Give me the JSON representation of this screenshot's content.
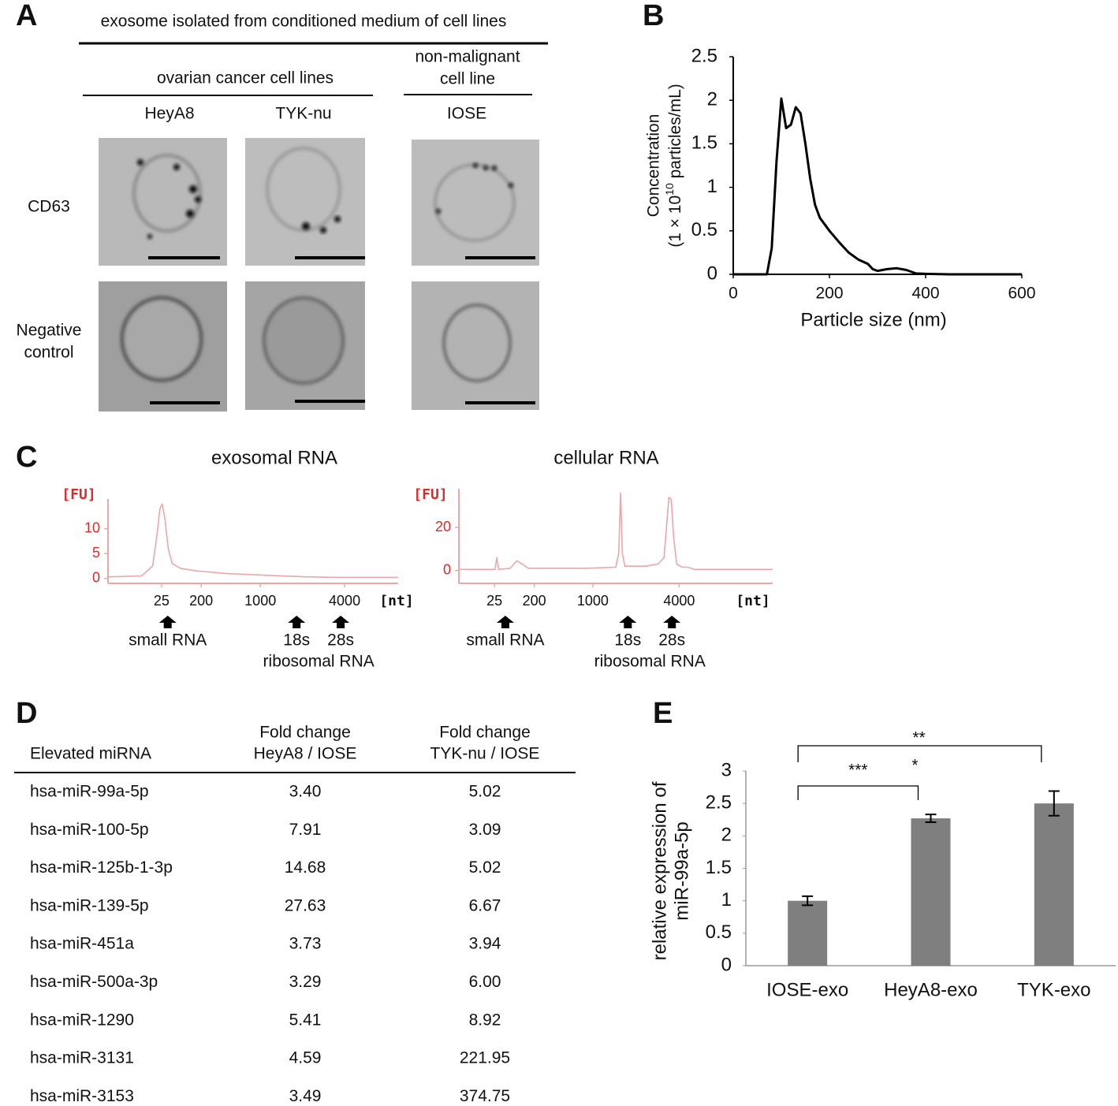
{
  "panel_labels": [
    "A",
    "B",
    "C",
    "D",
    "E"
  ],
  "panel_a": {
    "title": "exosome isolated from conditioned medium of cell lines",
    "groups": [
      {
        "lines": [
          "ovarian cancer cell lines"
        ]
      },
      {
        "lines": [
          "non-malignant",
          "cell line"
        ]
      }
    ],
    "columns": [
      "HeyA8",
      "TYK-nu",
      "IOSE"
    ],
    "rows": [
      [
        "CD63"
      ],
      [
        "Negative",
        "control"
      ]
    ]
  },
  "chart_data": [
    {
      "type": "line",
      "x_label": "Particle size (nm)",
      "y_label": [
        "Concentration",
        [
          "(1 × 10",
          "10",
          " particles/mL)"
        ]
      ],
      "color": "#000000",
      "x": [
        0,
        60,
        70,
        80,
        90,
        100,
        110,
        120,
        130,
        140,
        150,
        160,
        170,
        180,
        200,
        220,
        240,
        260,
        280,
        290,
        300,
        320,
        340,
        360,
        380,
        400,
        450,
        600
      ],
      "values": [
        0,
        0,
        0,
        0.3,
        1.3,
        2.02,
        1.68,
        1.72,
        1.92,
        1.85,
        1.5,
        1.1,
        0.8,
        0.65,
        0.5,
        0.37,
        0.25,
        0.17,
        0.12,
        0.06,
        0.04,
        0.06,
        0.07,
        0.05,
        0.01,
        0.005,
        0,
        0
      ],
      "xlim": [
        0,
        600
      ],
      "xticks": [
        0,
        200,
        400,
        600
      ],
      "ylim": [
        0,
        2.5
      ],
      "yticks": [
        0,
        0.5,
        1,
        1.5,
        2,
        2.5
      ]
    },
    {
      "type": "line",
      "title": "exosomal RNA",
      "y_unit": "[FU]",
      "x_unit": "[nt]",
      "color": "#e8a8a8",
      "axis_color": "#e8a8a8",
      "tick_color": "#e02828",
      "x": [
        19,
        25,
        27,
        27.8,
        28.3,
        28.7,
        29.2,
        29.8,
        30.5,
        32,
        35,
        40,
        50,
        55,
        60,
        71
      ],
      "values": [
        0.3,
        0.5,
        2.5,
        9,
        14,
        15,
        12,
        6,
        3,
        2,
        1.5,
        1,
        0.5,
        0.3,
        0.2,
        0.2
      ],
      "xlim": [
        19,
        71
      ],
      "xticks": [
        {
          "value": 28.6,
          "label": "25"
        },
        {
          "value": 35.7,
          "label": "200"
        },
        {
          "value": 46.3,
          "label": "1000"
        },
        {
          "value": 61.4,
          "label": "4000"
        }
      ],
      "ylim": [
        -1,
        16
      ],
      "yticks": [
        0,
        5,
        10
      ],
      "markers": [
        {
          "label": "small RNA",
          "x": 29.7
        },
        {
          "label": "18s",
          "x": 52.8
        },
        {
          "label": "28s",
          "x": 60.7
        }
      ],
      "marker_group_label": "ribosomal RNA"
    },
    {
      "type": "line",
      "title": "cellular RNA",
      "y_unit": "[FU]",
      "x_unit": "[nt]",
      "color": "#e8a8a8",
      "axis_color": "#e8a8a8",
      "tick_color": "#e02828",
      "x": [
        19,
        25,
        25.3,
        25.6,
        27.5,
        28.6,
        29.5,
        30.5,
        40,
        45,
        45.5,
        45.8,
        46.1,
        46.5,
        50,
        52,
        53,
        53.4,
        53.8,
        54.2,
        54.6,
        55.1,
        56,
        57,
        58,
        71
      ],
      "values": [
        0.5,
        0.5,
        6,
        0.5,
        1,
        4.5,
        3,
        1,
        1,
        1.5,
        8,
        36,
        8,
        2,
        2,
        3,
        6,
        20,
        34,
        33,
        15,
        3,
        1.5,
        1.5,
        0.5,
        0.5
      ],
      "xlim": [
        19,
        71
      ],
      "xticks": [
        {
          "value": 24.9,
          "label": "25"
        },
        {
          "value": 31.5,
          "label": "200"
        },
        {
          "value": 41.2,
          "label": "1000"
        },
        {
          "value": 55.5,
          "label": "4000"
        }
      ],
      "ylim": [
        -6,
        38
      ],
      "yticks": [
        0,
        20
      ],
      "markers": [
        {
          "label": "small RNA",
          "x": 26.7
        },
        {
          "label": "18s",
          "x": 47.0
        },
        {
          "label": "28s",
          "x": 54.3
        }
      ],
      "marker_group_label": "ribosomal RNA"
    },
    {
      "type": "bar",
      "y_label": [
        "relative expression of",
        "miR-99a-5p"
      ],
      "categories": [
        "IOSE-exo",
        "HeyA8-exo",
        "TYK-exo"
      ],
      "values": [
        1.0,
        2.27,
        2.5
      ],
      "errors": [
        0.07,
        0.06,
        0.19
      ],
      "color": "#7f7f7f",
      "ylim": [
        0,
        3
      ],
      "yticks": [
        0,
        0.5,
        1,
        1.5,
        2,
        2.5,
        3
      ],
      "significance": [
        {
          "label": "***",
          "from": 0,
          "to": 1
        },
        {
          "label": "**",
          "from": 0,
          "to": 2
        },
        {
          "label": "*"
        }
      ]
    }
  ],
  "table": {
    "header": [
      [
        "Elevated miRNA"
      ],
      [
        "Fold change",
        "HeyA8 / IOSE"
      ],
      [
        "Fold change",
        "TYK-nu / IOSE"
      ]
    ],
    "rows": [
      [
        "hsa-miR-99a-5p",
        "3.40",
        "5.02"
      ],
      [
        "hsa-miR-100-5p",
        "7.91",
        "3.09"
      ],
      [
        "hsa-miR-125b-1-3p",
        "14.68",
        "5.02"
      ],
      [
        "hsa-miR-139-5p",
        "27.63",
        "6.67"
      ],
      [
        "hsa-miR-451a",
        "3.73",
        "3.94"
      ],
      [
        "hsa-miR-500a-3p",
        "3.29",
        "6.00"
      ],
      [
        "hsa-miR-1290",
        "5.41",
        "8.92"
      ],
      [
        "hsa-miR-3131",
        "4.59",
        "221.95"
      ],
      [
        "hsa-miR-3153",
        "3.49",
        "374.75"
      ]
    ]
  }
}
